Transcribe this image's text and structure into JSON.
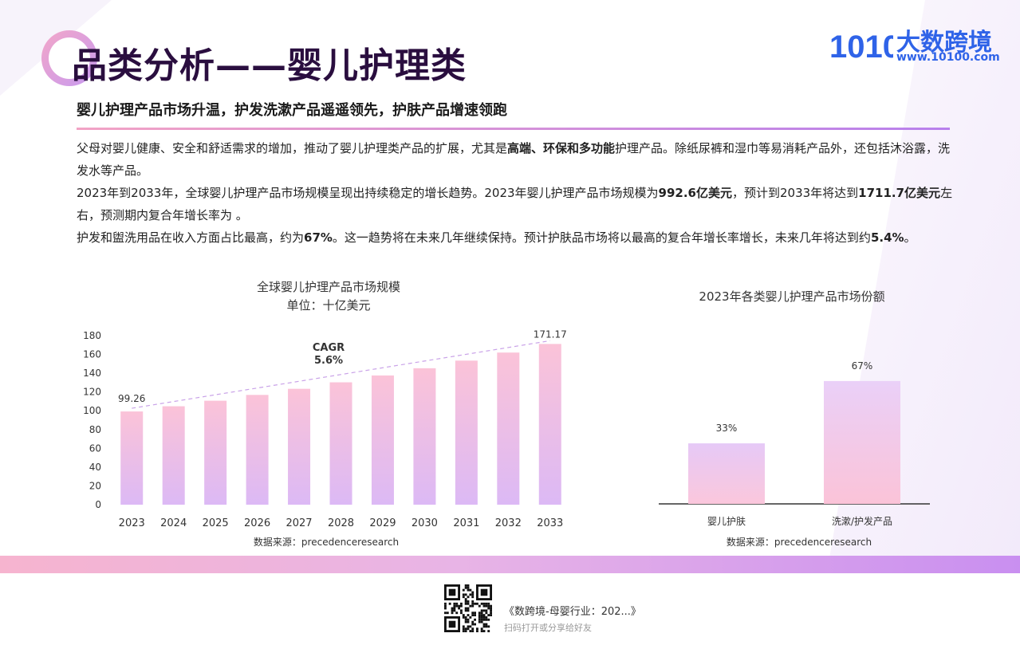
{
  "page": {
    "title": "品类分析——婴儿护理类",
    "subtitle": "婴儿护理产品市场升温，护发洗漱产品遥遥领先，护肤产品增速领跑"
  },
  "logo": {
    "brand": "大数跨境",
    "url": "www.10100.com",
    "mark": "10100"
  },
  "paragraphs": {
    "p1_a": "父母对婴儿健康、安全和舒适需求的增加，推动了婴儿护理类产品的扩展，尤其是",
    "p1_b": "高端、环保和多功能",
    "p1_c": "护理产品。除纸尿裤和湿巾等易消耗产品外，还包括沐浴露，洗发水等产品。",
    "p2_a": "2023年到2033年，全球婴儿护理产品市场规模呈现出持续稳定的增长趋势。2023年婴儿护理产品市场规模为",
    "p2_b": "992.6亿美元",
    "p2_c": "，预计到2033年将达到",
    "p2_d": "1711.7亿美元",
    "p2_e": "左右，预测期内复合年增长率为 。",
    "p3_a": "护发和盥洗用品在收入方面占比最高，约为",
    "p3_b": "67%",
    "p3_c": "。这一趋势将在未来几年继续保持。预计护肤品市场将以最高的复合年增长率增长，未来几年将达到约",
    "p3_d": "5.4%",
    "p3_e": "。"
  },
  "chart_data": [
    {
      "type": "bar",
      "title": "全球婴儿护理产品市场规模",
      "subtitle": "单位：十亿美元",
      "categories": [
        "2023",
        "2024",
        "2025",
        "2026",
        "2027",
        "2028",
        "2029",
        "2030",
        "2031",
        "2032",
        "2033"
      ],
      "values": [
        99.26,
        104.8,
        110.7,
        116.9,
        123.4,
        130.3,
        137.6,
        145.3,
        153.4,
        162.0,
        171.17
      ],
      "data_labels": {
        "first": "99.26",
        "last": "171.17"
      },
      "ylim": [
        0,
        180
      ],
      "yticks": [
        0,
        20,
        40,
        60,
        80,
        100,
        120,
        140,
        160,
        180
      ],
      "annotation": {
        "line1": "CAGR",
        "line2": "5.6%"
      },
      "source": "数据来源：precedenceresearch",
      "colors": {
        "top": "#fbc3d8",
        "bottom": "#dcb9f5",
        "trend": "#c9a2e8"
      }
    },
    {
      "type": "bar",
      "title": "2023年各类婴儿护理产品市场份额",
      "categories": [
        "婴儿护肤",
        "洗漱/护发产品"
      ],
      "values": [
        33,
        67
      ],
      "value_labels": [
        "33%",
        "67%"
      ],
      "ylim": [
        0,
        100
      ],
      "source": "数据来源：precedenceresearch",
      "colors": {
        "skin": "#e6c9f7",
        "hair": "#f6c6dd"
      }
    }
  ],
  "footer": {
    "doc_title": "《数跨境-母婴行业：202...》",
    "hint": "扫码打开或分享给好友"
  }
}
